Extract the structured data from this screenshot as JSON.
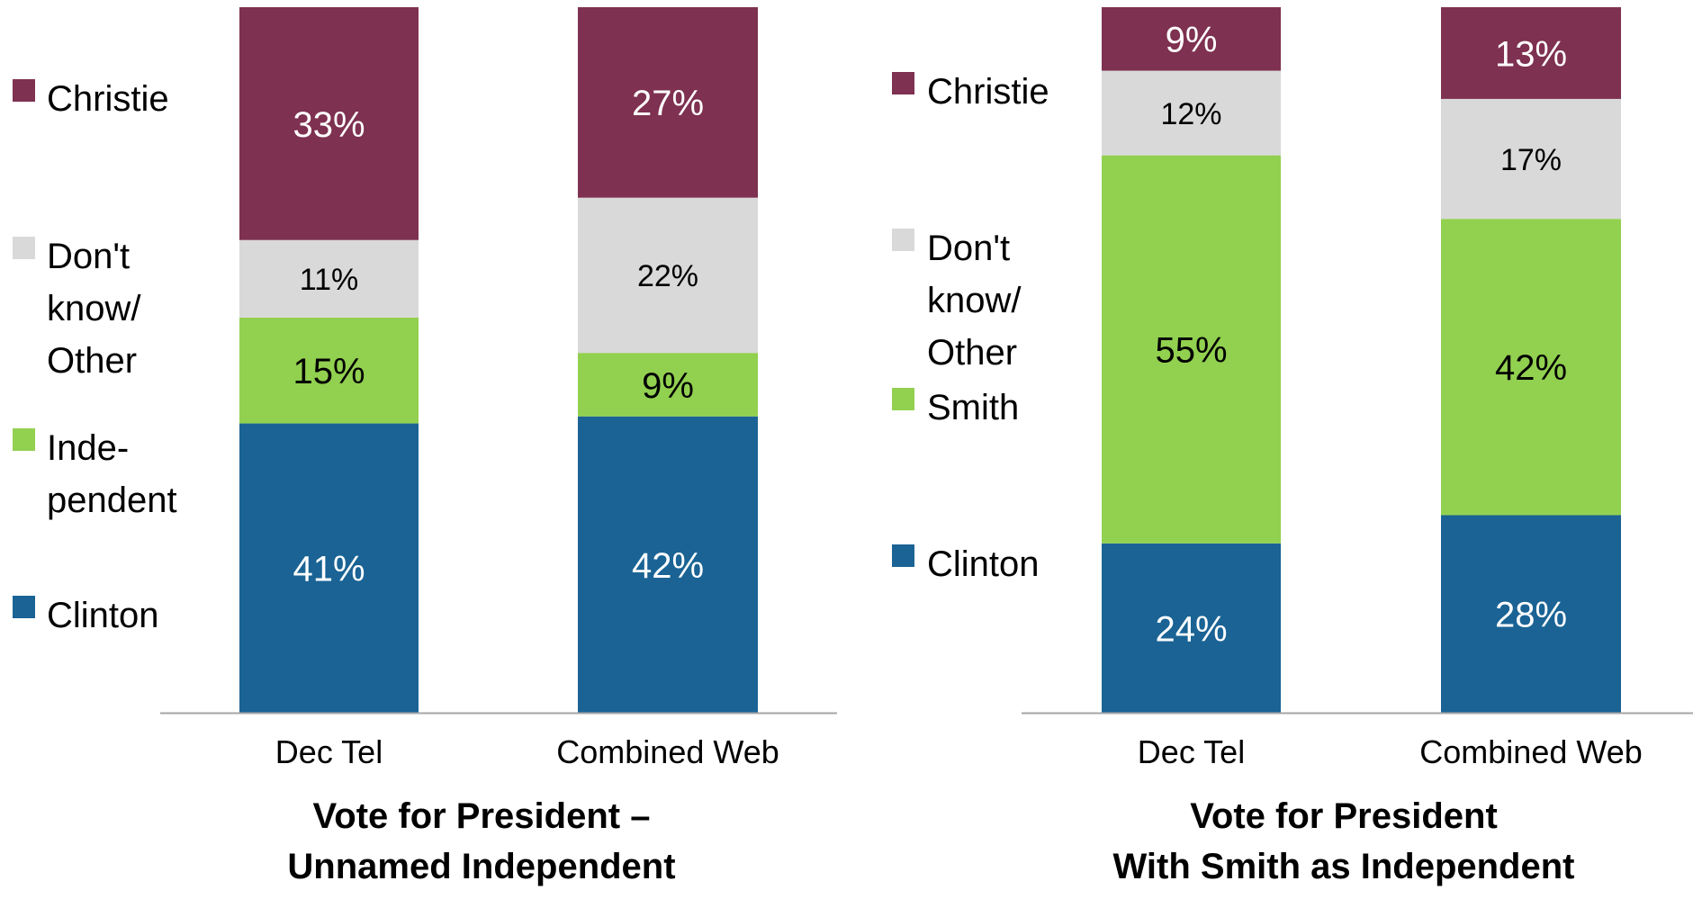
{
  "chart_data": [
    {
      "type": "bar",
      "stacked": true,
      "title": "Vote for President –",
      "subtitle": "Unnamed Independent",
      "categories": [
        "Dec Tel",
        "Combined Web"
      ],
      "ylim": [
        0,
        100
      ],
      "grid": false,
      "legend_position": "left",
      "series": [
        {
          "name": "Clinton",
          "color": "#1a6394",
          "values": [
            41,
            42
          ],
          "labels": [
            "41%",
            "42%"
          ]
        },
        {
          "name": "Inde-pendent",
          "legend_lines": [
            "Inde-",
            "pendent"
          ],
          "color": "#92d050",
          "values": [
            15,
            9
          ],
          "labels": [
            "15%",
            "9%"
          ]
        },
        {
          "name": "Don't know/ Other",
          "legend_lines": [
            "Don't",
            "know/",
            "Other"
          ],
          "color": "#d9d9d9",
          "values": [
            11,
            22
          ],
          "labels": [
            "11%",
            "22%"
          ]
        },
        {
          "name": "Christie",
          "color": "#7e3150",
          "values": [
            33,
            27
          ],
          "labels": [
            "33%",
            "27%"
          ]
        }
      ]
    },
    {
      "type": "bar",
      "stacked": true,
      "title": "Vote for President",
      "subtitle": "With Smith as Independent",
      "categories": [
        "Dec Tel",
        "Combined Web"
      ],
      "ylim": [
        0,
        100
      ],
      "grid": false,
      "legend_position": "left",
      "series": [
        {
          "name": "Clinton",
          "color": "#1a6394",
          "values": [
            24,
            28
          ],
          "labels": [
            "24%",
            "28%"
          ]
        },
        {
          "name": "Smith",
          "color": "#92d050",
          "values": [
            55,
            42
          ],
          "labels": [
            "55%",
            "42%"
          ]
        },
        {
          "name": "Don't know/ Other",
          "legend_lines": [
            "Don't",
            "know/",
            "Other"
          ],
          "color": "#d9d9d9",
          "values": [
            12,
            17
          ],
          "labels": [
            "12%",
            "17%"
          ]
        },
        {
          "name": "Christie",
          "color": "#7e3150",
          "values": [
            9,
            13
          ],
          "labels": [
            "9%",
            "13%"
          ]
        }
      ]
    }
  ]
}
